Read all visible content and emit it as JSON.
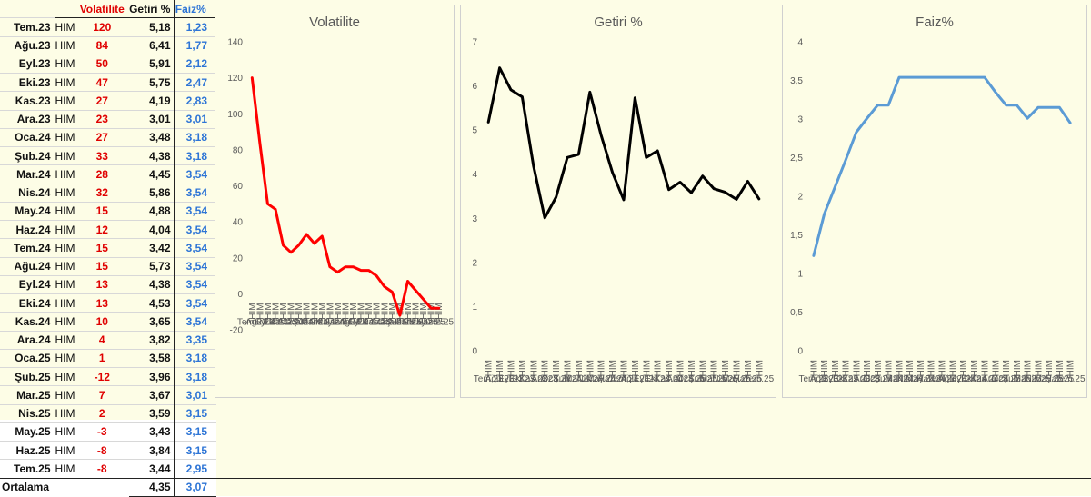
{
  "table": {
    "headers": {
      "date": "",
      "him": "",
      "vol": "Volatilite",
      "getiri": "Getiri %",
      "faiz": "Faiz%"
    },
    "rows": [
      {
        "date": "Tem.23",
        "him": "HIM",
        "vol": "120",
        "getiri": "5,18",
        "faiz": "1,23"
      },
      {
        "date": "Ağu.23",
        "him": "HIM",
        "vol": "84",
        "getiri": "6,41",
        "faiz": "1,77"
      },
      {
        "date": "Eyl.23",
        "him": "HIM",
        "vol": "50",
        "getiri": "5,91",
        "faiz": "2,12"
      },
      {
        "date": "Eki.23",
        "him": "HIM",
        "vol": "47",
        "getiri": "5,75",
        "faiz": "2,47"
      },
      {
        "date": "Kas.23",
        "him": "HIM",
        "vol": "27",
        "getiri": "4,19",
        "faiz": "2,83"
      },
      {
        "date": "Ara.23",
        "him": "HIM",
        "vol": "23",
        "getiri": "3,01",
        "faiz": "3,01"
      },
      {
        "date": "Oca.24",
        "him": "HIM",
        "vol": "27",
        "getiri": "3,48",
        "faiz": "3,18"
      },
      {
        "date": "Şub.24",
        "him": "HIM",
        "vol": "33",
        "getiri": "4,38",
        "faiz": "3,18"
      },
      {
        "date": "Mar.24",
        "him": "HIM",
        "vol": "28",
        "getiri": "4,45",
        "faiz": "3,54"
      },
      {
        "date": "Nis.24",
        "him": "HIM",
        "vol": "32",
        "getiri": "5,86",
        "faiz": "3,54"
      },
      {
        "date": "May.24",
        "him": "HIM",
        "vol": "15",
        "getiri": "4,88",
        "faiz": "3,54"
      },
      {
        "date": "Haz.24",
        "him": "HIM",
        "vol": "12",
        "getiri": "4,04",
        "faiz": "3,54"
      },
      {
        "date": "Tem.24",
        "him": "HIM",
        "vol": "15",
        "getiri": "3,42",
        "faiz": "3,54"
      },
      {
        "date": "Ağu.24",
        "him": "HIM",
        "vol": "15",
        "getiri": "5,73",
        "faiz": "3,54"
      },
      {
        "date": "Eyl.24",
        "him": "HIM",
        "vol": "13",
        "getiri": "4,38",
        "faiz": "3,54"
      },
      {
        "date": "Eki.24",
        "him": "HIM",
        "vol": "13",
        "getiri": "4,53",
        "faiz": "3,54"
      },
      {
        "date": "Kas.24",
        "him": "HIM",
        "vol": "10",
        "getiri": "3,65",
        "faiz": "3,54"
      },
      {
        "date": "Ara.24",
        "him": "HIM",
        "vol": "4",
        "getiri": "3,82",
        "faiz": "3,35"
      },
      {
        "date": "Oca.25",
        "him": "HIM",
        "vol": "1",
        "getiri": "3,58",
        "faiz": "3,18"
      },
      {
        "date": "Şub.25",
        "him": "HIM",
        "vol": "-12",
        "getiri": "3,96",
        "faiz": "3,18"
      },
      {
        "date": "Mar.25",
        "him": "HIM",
        "vol": "7",
        "getiri": "3,67",
        "faiz": "3,01"
      },
      {
        "date": "Nis.25",
        "him": "HIM",
        "vol": "2",
        "getiri": "3,59",
        "faiz": "3,15"
      },
      {
        "date": "May.25",
        "him": "HIM",
        "vol": "-3",
        "getiri": "3,43",
        "faiz": "3,15"
      },
      {
        "date": "Haz.25",
        "him": "HIM",
        "vol": "-8",
        "getiri": "3,84",
        "faiz": "3,15"
      },
      {
        "date": "Tem.25",
        "him": "HIM",
        "vol": "-8",
        "getiri": "3,44",
        "faiz": "2,95"
      }
    ],
    "average": {
      "label": "Ortalama",
      "getiri": "4,35",
      "faiz": "3,07"
    }
  },
  "chart_data": [
    {
      "type": "line",
      "title": "Volatilite",
      "color": "#ff0000",
      "categories": [
        "Tem.23",
        "Ağu.23",
        "Eyl.23",
        "Eki.23",
        "Kas.23",
        "Ara.23",
        "Oca.24",
        "Şub.24",
        "Mar.24",
        "Nis.24",
        "May.24",
        "Haz.24",
        "Tem.24",
        "Ağu.24",
        "Eyl.24",
        "Eki.24",
        "Kas.24",
        "Ara.24",
        "Oca.25",
        "Şub.25",
        "Mar.25",
        "Nis.25",
        "May.25",
        "Haz.25",
        "Tem.25"
      ],
      "category_group": "HIM",
      "values": [
        120,
        84,
        50,
        47,
        27,
        23,
        27,
        33,
        28,
        32,
        15,
        12,
        15,
        15,
        13,
        13,
        10,
        4,
        1,
        -12,
        7,
        2,
        -3,
        -8,
        -8
      ],
      "ylim": [
        -20,
        140
      ],
      "yticks": [
        "-20",
        "0",
        "20",
        "40",
        "60",
        "80",
        "100",
        "120",
        "140"
      ],
      "grid": false
    },
    {
      "type": "line",
      "title": "Getiri %",
      "color": "#000000",
      "categories": [
        "Tem.23",
        "Ağu.23",
        "Eyl.23",
        "Eki.23",
        "Kas.23",
        "Ara.23",
        "Oca.24",
        "Şub.24",
        "Mar.24",
        "Nis.24",
        "May.24",
        "Haz.24",
        "Tem.24",
        "Ağu.24",
        "Eyl.24",
        "Eki.24",
        "Kas.24",
        "Ara.24",
        "Oca.25",
        "Şub.25",
        "Mar.25",
        "Nis.25",
        "May.25",
        "Haz.25",
        "Tem.25"
      ],
      "category_group": "HIM",
      "values": [
        5.18,
        6.41,
        5.91,
        5.75,
        4.19,
        3.01,
        3.48,
        4.38,
        4.45,
        5.86,
        4.88,
        4.04,
        3.42,
        5.73,
        4.38,
        4.53,
        3.65,
        3.82,
        3.58,
        3.96,
        3.67,
        3.59,
        3.43,
        3.84,
        3.44
      ],
      "ylim": [
        0,
        7
      ],
      "yticks": [
        "0",
        "1",
        "2",
        "3",
        "4",
        "5",
        "6",
        "7"
      ],
      "grid": false
    },
    {
      "type": "line",
      "title": "Faiz%",
      "color": "#5b9bd5",
      "categories": [
        "Tem.23",
        "Ağu.23",
        "Eyl.23",
        "Eki.23",
        "Kas.23",
        "Ara.23",
        "Oca.24",
        "Şub.24",
        "Mar.24",
        "Nis.24",
        "May.24",
        "Haz.24",
        "Tem.24",
        "Ağu.24",
        "Eyl.24",
        "Eki.24",
        "Kas.24",
        "Ara.24",
        "Oca.25",
        "Şub.25",
        "Mar.25",
        "Nis.25",
        "May.25",
        "Haz.25",
        "Tem.25"
      ],
      "category_group": "HIM",
      "values": [
        1.23,
        1.77,
        2.12,
        2.47,
        2.83,
        3.01,
        3.18,
        3.18,
        3.54,
        3.54,
        3.54,
        3.54,
        3.54,
        3.54,
        3.54,
        3.54,
        3.54,
        3.35,
        3.18,
        3.18,
        3.01,
        3.15,
        3.15,
        3.15,
        2.95
      ],
      "ylim": [
        0,
        4
      ],
      "yticks": [
        "0",
        "0,5",
        "1",
        "1,5",
        "2",
        "2,5",
        "3",
        "3,5",
        "4"
      ],
      "grid": false
    }
  ]
}
